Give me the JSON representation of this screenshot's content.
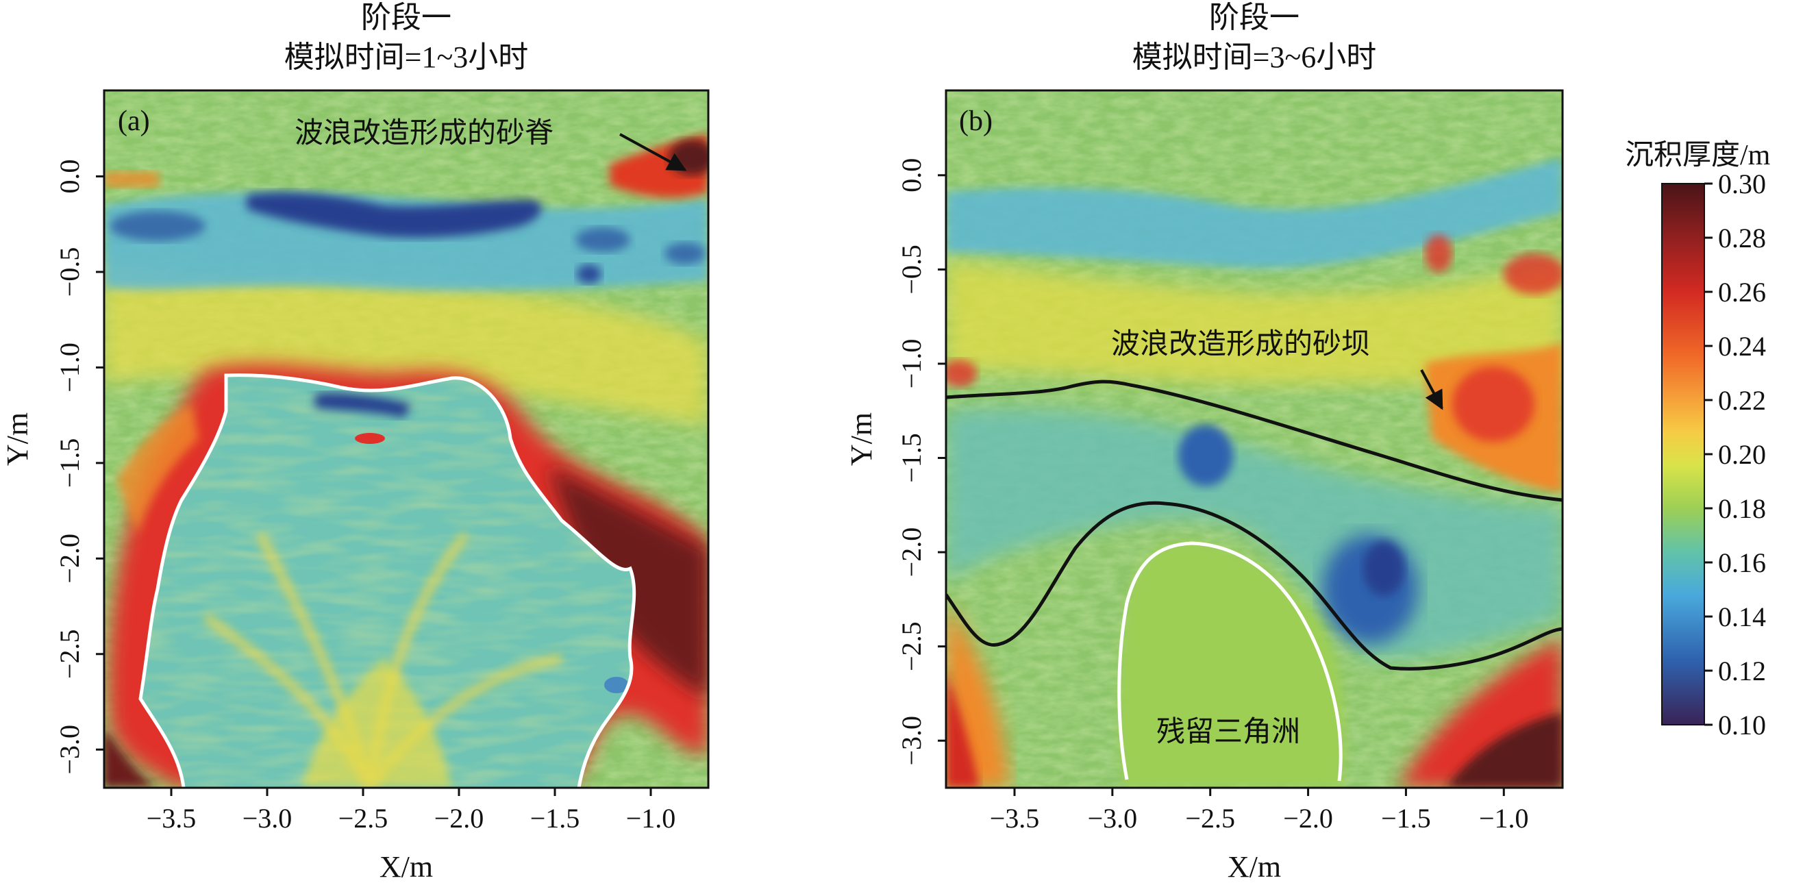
{
  "colors": {
    "colormap": [
      "#4a1418",
      "#8a1f1f",
      "#d32a22",
      "#f06a28",
      "#f5a23a",
      "#f6cc45",
      "#d9e34a",
      "#9dcf55",
      "#62c3a8",
      "#4aa9dc",
      "#2f62ae",
      "#3a2356"
    ],
    "background_green": "#8dc56a",
    "black_line": "#111111",
    "white_line": "#ffffff"
  },
  "colorbar": {
    "title": "沉积厚度/m",
    "ticks": [
      "0.30",
      "0.28",
      "0.26",
      "0.24",
      "0.22",
      "0.20",
      "0.18",
      "0.16",
      "0.14",
      "0.12",
      "0.10"
    ],
    "range": [
      0.1,
      0.3
    ]
  },
  "chart_data": [
    {
      "type": "heatmap",
      "panel_label": "(a)",
      "title": "阶段一",
      "subtitle": "模拟时间=1~3小时",
      "xlabel": "X/m",
      "ylabel": "Y/m",
      "xlim": [
        -3.85,
        -0.7
      ],
      "ylim": [
        -3.2,
        0.45
      ],
      "x_ticks": [
        "−3.5",
        "−3.0",
        "−2.5",
        "−2.0",
        "−1.5",
        "−1.0"
      ],
      "y_ticks": [
        "0.0",
        "−0.5",
        "−1.0",
        "−1.5",
        "−2.0",
        "−2.5",
        "−3.0"
      ],
      "value_range": [
        0.1,
        0.3
      ],
      "annotation": {
        "text": "波浪改造形成的砂脊",
        "arrow_to": [
          -0.85,
          -0.05
        ]
      },
      "features": [
        {
          "name": "thin-deposit-band",
          "value": 0.12,
          "y_range": [
            -0.4,
            -0.05
          ]
        },
        {
          "name": "delta-lobe-rim",
          "value": 0.28,
          "boundary": "white"
        },
        {
          "name": "delta-interior",
          "value": 0.19
        },
        {
          "name": "sand-ridge",
          "value": 0.3,
          "location": [
            -0.9,
            0.0
          ]
        }
      ]
    },
    {
      "type": "heatmap",
      "panel_label": "(b)",
      "title": "阶段一",
      "subtitle": "模拟时间=3~6小时",
      "xlabel": "X/m",
      "ylabel": "Y/m",
      "xlim": [
        -3.85,
        -0.7
      ],
      "ylim": [
        -3.25,
        0.45
      ],
      "x_ticks": [
        "−3.5",
        "−3.0",
        "−2.5",
        "−2.0",
        "−1.5",
        "−1.0"
      ],
      "y_ticks": [
        "0.0",
        "−0.5",
        "−1.0",
        "−1.5",
        "−2.0",
        "−2.5",
        "−3.0"
      ],
      "value_range": [
        0.1,
        0.3
      ],
      "annotations": [
        {
          "text": "波浪改造形成的砂坝",
          "arrow_to": [
            -1.3,
            -1.25
          ]
        },
        {
          "text": "残留三角洲"
        }
      ],
      "features": [
        {
          "name": "shallow-channel-band",
          "value": 0.17,
          "y_range": [
            -0.45,
            0.0
          ]
        },
        {
          "name": "sand-bar",
          "value": 0.26,
          "location": [
            -1.2,
            -1.4
          ]
        },
        {
          "name": "scour-zone",
          "value": 0.13,
          "location": [
            -1.7,
            -2.2
          ]
        },
        {
          "name": "southeast-deposit",
          "value": 0.3,
          "location": [
            -1.1,
            -3.0
          ]
        }
      ]
    }
  ]
}
